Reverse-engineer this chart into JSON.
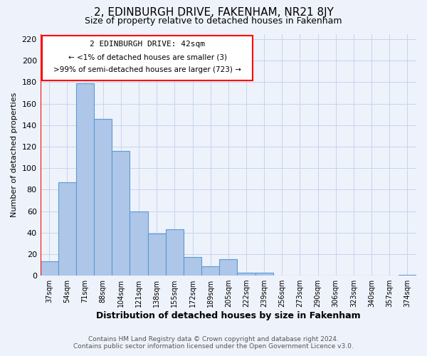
{
  "title": "2, EDINBURGH DRIVE, FAKENHAM, NR21 8JY",
  "subtitle": "Size of property relative to detached houses in Fakenham",
  "xlabel": "Distribution of detached houses by size in Fakenham",
  "ylabel": "Number of detached properties",
  "bar_labels": [
    "37sqm",
    "54sqm",
    "71sqm",
    "88sqm",
    "104sqm",
    "121sqm",
    "138sqm",
    "155sqm",
    "172sqm",
    "189sqm",
    "205sqm",
    "222sqm",
    "239sqm",
    "256sqm",
    "273sqm",
    "290sqm",
    "306sqm",
    "323sqm",
    "340sqm",
    "357sqm",
    "374sqm"
  ],
  "bar_values": [
    13,
    87,
    179,
    146,
    116,
    60,
    39,
    43,
    17,
    9,
    15,
    3,
    3,
    0,
    0,
    0,
    0,
    0,
    0,
    0,
    1
  ],
  "bar_color": "#aec6e8",
  "bar_edge_color": "#5b9bd5",
  "ylim": [
    0,
    225
  ],
  "yticks": [
    0,
    20,
    40,
    60,
    80,
    100,
    120,
    140,
    160,
    180,
    200,
    220
  ],
  "annotation_title": "2 EDINBURGH DRIVE: 42sqm",
  "annotation_line1": "← <1% of detached houses are smaller (3)",
  "annotation_line2": ">99% of semi-detached houses are larger (723) →",
  "footer_line1": "Contains HM Land Registry data © Crown copyright and database right 2024.",
  "footer_line2": "Contains public sector information licensed under the Open Government Licence v3.0.",
  "bg_color": "#eef2fb",
  "grid_color": "#c5d5ee"
}
